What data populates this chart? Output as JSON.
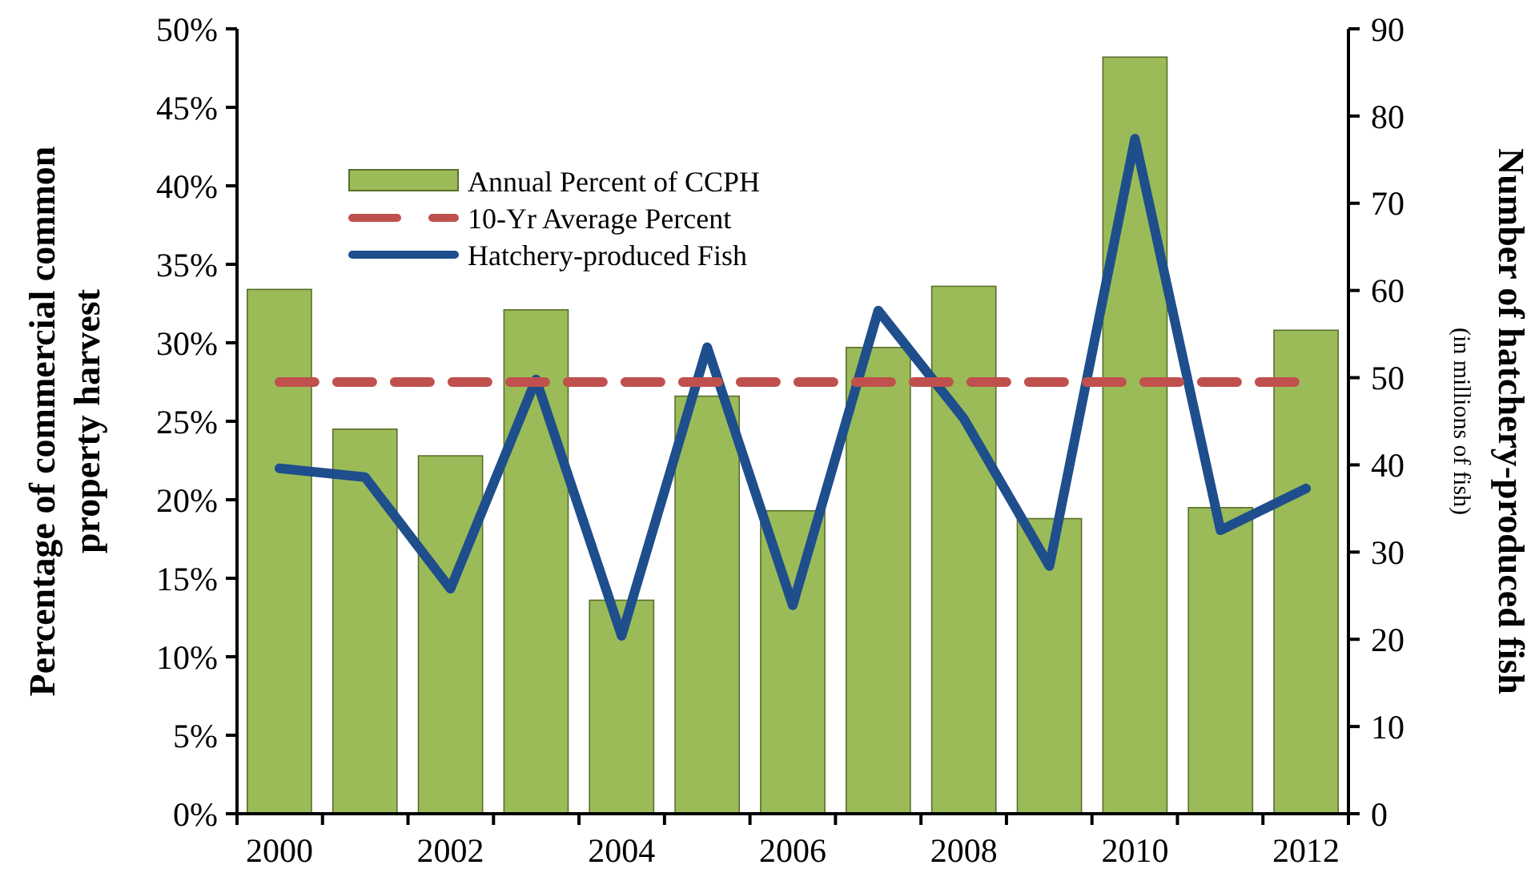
{
  "chart_data": {
    "type": "bar",
    "ylabel": "Percentage of commercial common property harvest",
    "y2label": "Number of hatchery-produced fish",
    "annotations": [
      "(in millions of fish)"
    ],
    "categories": [
      "2000",
      null,
      "2002",
      null,
      "2004",
      null,
      "2006",
      null,
      "2008",
      null,
      "2010",
      null,
      "2012"
    ],
    "series": [
      {
        "name": "Annual Percent of CCPH",
        "color": "#9bbb59",
        "values": [
          33.4,
          24.5,
          22.8,
          32.1,
          13.6,
          26.6,
          19.3,
          29.7,
          33.6,
          18.8,
          48.2,
          19.5,
          30.8
        ]
      },
      {
        "name": "Hatchery-produced Fish",
        "type": "line",
        "axis": "y2",
        "color": "#1f4e8c",
        "values": [
          39.6,
          38.6,
          25.8,
          49.8,
          20.4,
          53.5,
          23.9,
          57.7,
          45.3,
          28.4,
          77.4,
          32.5,
          37.3
        ]
      }
    ],
    "ref_lines": [
      {
        "axis": "y",
        "value": 27.5,
        "label": "10-Yr Average Percent",
        "color": "#c0504d",
        "line_style": "dashed"
      }
    ],
    "ylim": [
      0,
      50
    ],
    "yticks": [
      {
        "value": 0,
        "label": "0%"
      },
      {
        "value": 5,
        "label": "5%"
      },
      {
        "value": 10,
        "label": "10%"
      },
      {
        "value": 15,
        "label": "15%"
      },
      {
        "value": 20,
        "label": "20%"
      },
      {
        "value": 25,
        "label": "25%"
      },
      {
        "value": 30,
        "label": "30%"
      },
      {
        "value": 35,
        "label": "35%"
      },
      {
        "value": 40,
        "label": "40%"
      },
      {
        "value": 45,
        "label": "45%"
      },
      {
        "value": 50,
        "label": "50%"
      }
    ],
    "y2lim": [
      0,
      90
    ],
    "y2ticks": [
      0,
      10,
      20,
      30,
      40,
      50,
      60,
      70,
      80,
      90
    ],
    "legend": "top left",
    "grid": false
  }
}
